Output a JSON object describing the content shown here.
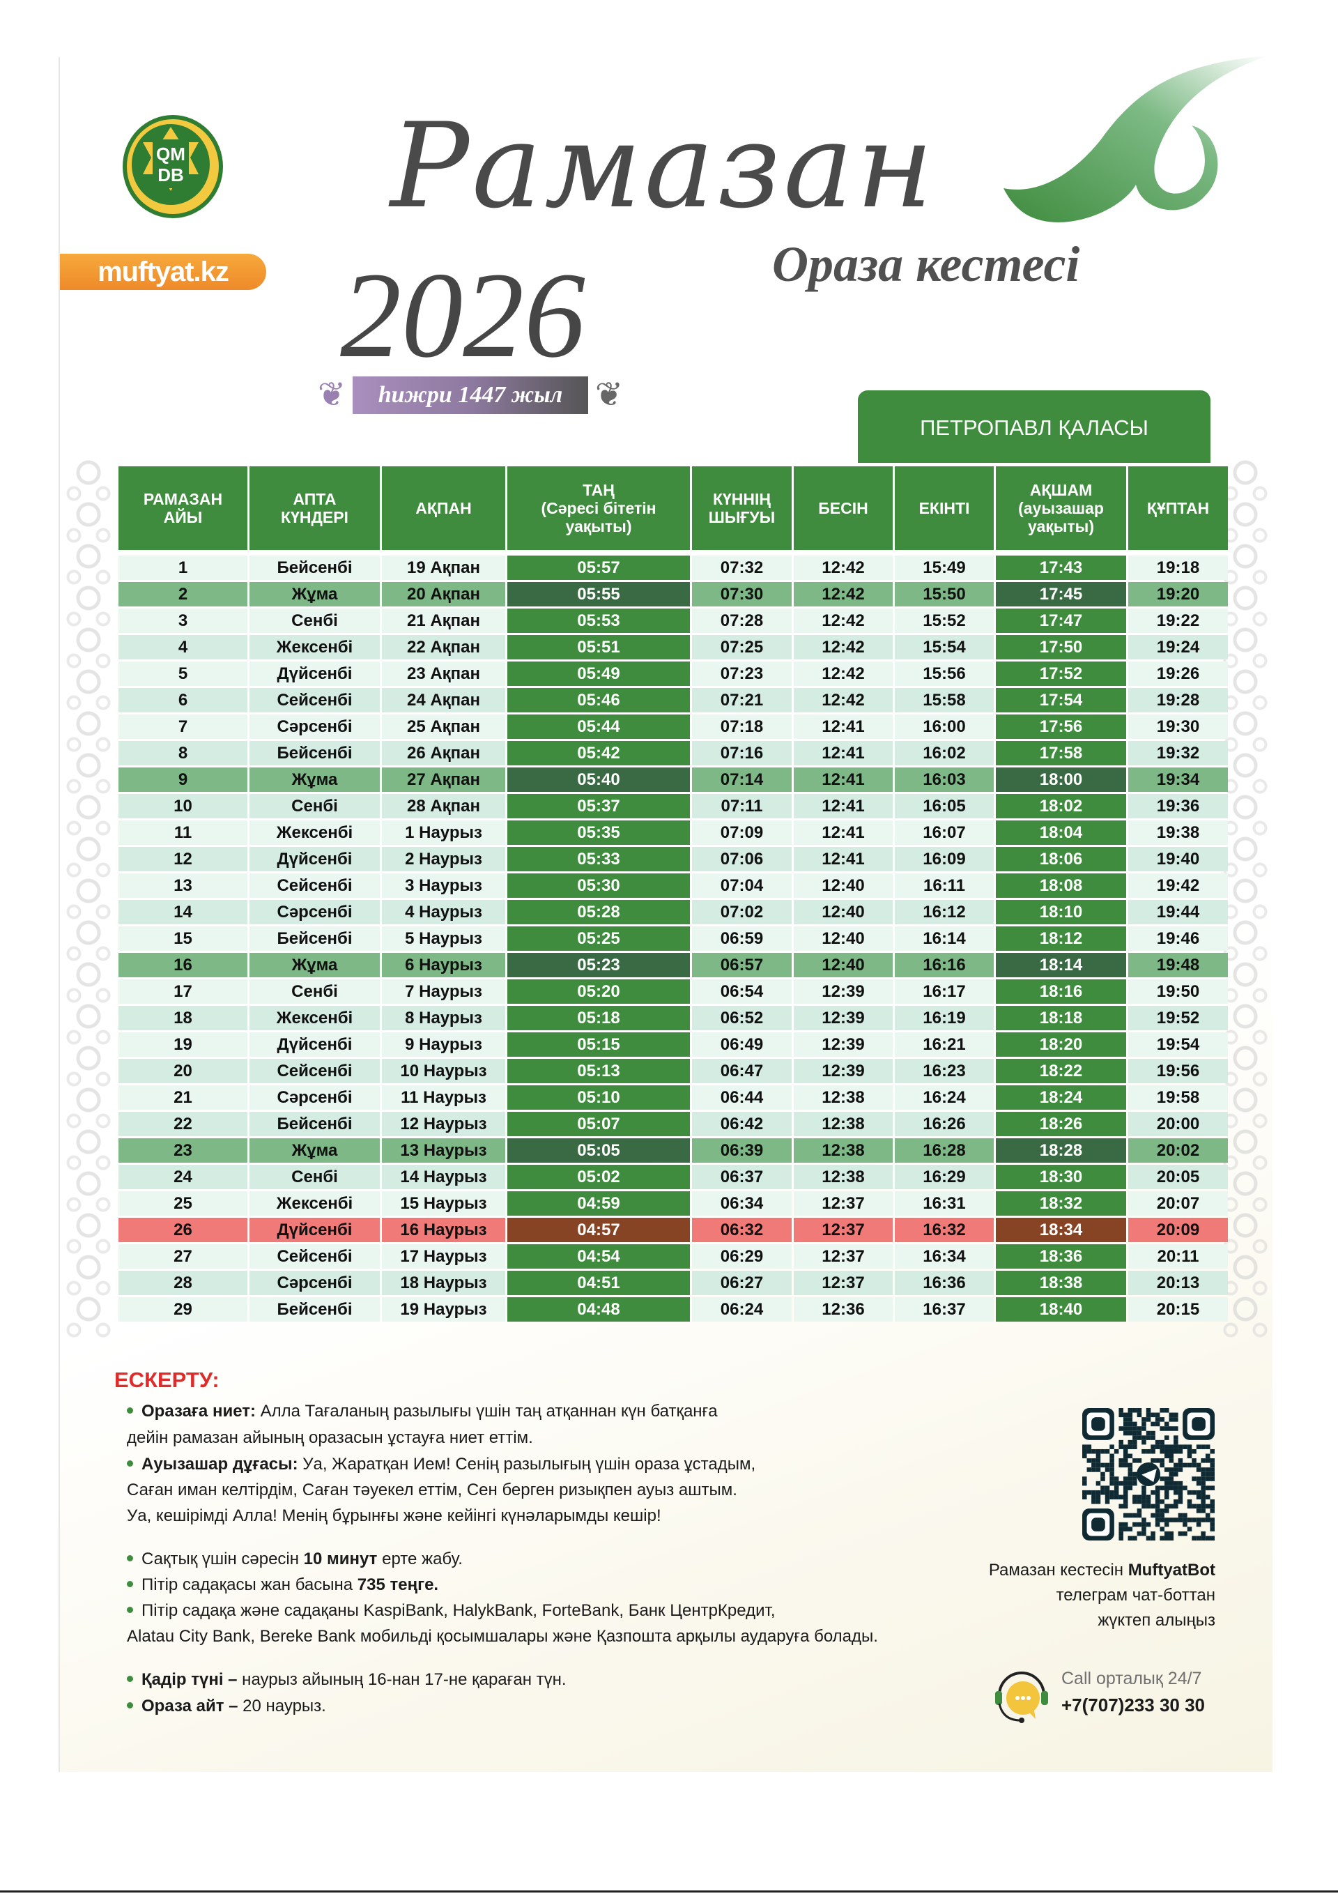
{
  "brand": {
    "logo_text": "QM DB",
    "site": "muftyat.kz",
    "colors": {
      "green": "#3f8c3e",
      "orange": "#f09a33",
      "red": "#e02b2b"
    }
  },
  "header": {
    "title": "Рамазан",
    "year": "2026",
    "subtitle": "Ораза кестесі",
    "hijri": "һижри 1447 жыл",
    "city": "ПЕТРОПАВЛ ҚАЛАСЫ"
  },
  "table": {
    "columns": [
      "РАМАЗАН\nАЙЫ",
      "АПТА\nКҮНДЕРІ",
      "АҚПАН",
      "ТАҢ\n(Сәресі бітетін\nуақыты)",
      "КҮННІҢ\nШЫҒУЫ",
      "БЕСІН",
      "ЕКІНТІ",
      "АҚШАМ\n(ауызашар\nуақыты)",
      "ҚҰПТАН"
    ],
    "rows": [
      {
        "cells": [
          "1",
          "Бейсенбі",
          "19 Ақпан",
          "05:57",
          "07:32",
          "12:42",
          "15:49",
          "17:43",
          "19:18"
        ],
        "kind": "normal"
      },
      {
        "cells": [
          "2",
          "Жұма",
          "20 Ақпан",
          "05:55",
          "07:30",
          "12:42",
          "15:50",
          "17:45",
          "19:20"
        ],
        "kind": "friday"
      },
      {
        "cells": [
          "3",
          "Сенбі",
          "21 Ақпан",
          "05:53",
          "07:28",
          "12:42",
          "15:52",
          "17:47",
          "19:22"
        ],
        "kind": "normal"
      },
      {
        "cells": [
          "4",
          "Жексенбі",
          "22 Ақпан",
          "05:51",
          "07:25",
          "12:42",
          "15:54",
          "17:50",
          "19:24"
        ],
        "kind": "normal"
      },
      {
        "cells": [
          "5",
          "Дүйсенбі",
          "23 Ақпан",
          "05:49",
          "07:23",
          "12:42",
          "15:56",
          "17:52",
          "19:26"
        ],
        "kind": "normal"
      },
      {
        "cells": [
          "6",
          "Сейсенбі",
          "24 Ақпан",
          "05:46",
          "07:21",
          "12:42",
          "15:58",
          "17:54",
          "19:28"
        ],
        "kind": "normal"
      },
      {
        "cells": [
          "7",
          "Сәрсенбі",
          "25 Ақпан",
          "05:44",
          "07:18",
          "12:41",
          "16:00",
          "17:56",
          "19:30"
        ],
        "kind": "normal"
      },
      {
        "cells": [
          "8",
          "Бейсенбі",
          "26 Ақпан",
          "05:42",
          "07:16",
          "12:41",
          "16:02",
          "17:58",
          "19:32"
        ],
        "kind": "normal"
      },
      {
        "cells": [
          "9",
          "Жұма",
          "27 Ақпан",
          "05:40",
          "07:14",
          "12:41",
          "16:03",
          "18:00",
          "19:34"
        ],
        "kind": "friday"
      },
      {
        "cells": [
          "10",
          "Сенбі",
          "28 Ақпан",
          "05:37",
          "07:11",
          "12:41",
          "16:05",
          "18:02",
          "19:36"
        ],
        "kind": "normal"
      },
      {
        "cells": [
          "11",
          "Жексенбі",
          "1 Наурыз",
          "05:35",
          "07:09",
          "12:41",
          "16:07",
          "18:04",
          "19:38"
        ],
        "kind": "normal"
      },
      {
        "cells": [
          "12",
          "Дүйсенбі",
          "2 Наурыз",
          "05:33",
          "07:06",
          "12:41",
          "16:09",
          "18:06",
          "19:40"
        ],
        "kind": "normal"
      },
      {
        "cells": [
          "13",
          "Сейсенбі",
          "3 Наурыз",
          "05:30",
          "07:04",
          "12:40",
          "16:11",
          "18:08",
          "19:42"
        ],
        "kind": "normal"
      },
      {
        "cells": [
          "14",
          "Сәрсенбі",
          "4 Наурыз",
          "05:28",
          "07:02",
          "12:40",
          "16:12",
          "18:10",
          "19:44"
        ],
        "kind": "normal"
      },
      {
        "cells": [
          "15",
          "Бейсенбі",
          "5 Наурыз",
          "05:25",
          "06:59",
          "12:40",
          "16:14",
          "18:12",
          "19:46"
        ],
        "kind": "normal"
      },
      {
        "cells": [
          "16",
          "Жұма",
          "6 Наурыз",
          "05:23",
          "06:57",
          "12:40",
          "16:16",
          "18:14",
          "19:48"
        ],
        "kind": "friday"
      },
      {
        "cells": [
          "17",
          "Сенбі",
          "7 Наурыз",
          "05:20",
          "06:54",
          "12:39",
          "16:17",
          "18:16",
          "19:50"
        ],
        "kind": "normal"
      },
      {
        "cells": [
          "18",
          "Жексенбі",
          "8 Наурыз",
          "05:18",
          "06:52",
          "12:39",
          "16:19",
          "18:18",
          "19:52"
        ],
        "kind": "normal"
      },
      {
        "cells": [
          "19",
          "Дүйсенбі",
          "9 Наурыз",
          "05:15",
          "06:49",
          "12:39",
          "16:21",
          "18:20",
          "19:54"
        ],
        "kind": "normal"
      },
      {
        "cells": [
          "20",
          "Сейсенбі",
          "10 Наурыз",
          "05:13",
          "06:47",
          "12:39",
          "16:23",
          "18:22",
          "19:56"
        ],
        "kind": "normal"
      },
      {
        "cells": [
          "21",
          "Сәрсенбі",
          "11 Наурыз",
          "05:10",
          "06:44",
          "12:38",
          "16:24",
          "18:24",
          "19:58"
        ],
        "kind": "normal"
      },
      {
        "cells": [
          "22",
          "Бейсенбі",
          "12 Наурыз",
          "05:07",
          "06:42",
          "12:38",
          "16:26",
          "18:26",
          "20:00"
        ],
        "kind": "normal"
      },
      {
        "cells": [
          "23",
          "Жұма",
          "13 Наурыз",
          "05:05",
          "06:39",
          "12:38",
          "16:28",
          "18:28",
          "20:02"
        ],
        "kind": "friday"
      },
      {
        "cells": [
          "24",
          "Сенбі",
          "14 Наурыз",
          "05:02",
          "06:37",
          "12:38",
          "16:29",
          "18:30",
          "20:05"
        ],
        "kind": "normal"
      },
      {
        "cells": [
          "25",
          "Жексенбі",
          "15 Наурыз",
          "04:59",
          "06:34",
          "12:37",
          "16:31",
          "18:32",
          "20:07"
        ],
        "kind": "normal"
      },
      {
        "cells": [
          "26",
          "Дүйсенбі",
          "16 Наурыз",
          "04:57",
          "06:32",
          "12:37",
          "16:32",
          "18:34",
          "20:09"
        ],
        "kind": "highlight"
      },
      {
        "cells": [
          "27",
          "Сейсенбі",
          "17 Наурыз",
          "04:54",
          "06:29",
          "12:37",
          "16:34",
          "18:36",
          "20:11"
        ],
        "kind": "normal"
      },
      {
        "cells": [
          "28",
          "Сәрсенбі",
          "18 Наурыз",
          "04:51",
          "06:27",
          "12:37",
          "16:36",
          "18:38",
          "20:13"
        ],
        "kind": "normal"
      },
      {
        "cells": [
          "29",
          "Бейсенбі",
          "19 Наурыз",
          "04:48",
          "06:24",
          "12:36",
          "16:37",
          "18:40",
          "20:15"
        ],
        "kind": "normal"
      }
    ]
  },
  "notes": {
    "title": "ЕСКЕРТУ:",
    "niet_bold": "Оразаға ниет:",
    "niet_text": " Алла Тағаланың разылығы үшін таң атқаннан күн батқанға",
    "niet_cont": "дейін рамазан айының оразасын ұстауға ниет еттім.",
    "dua_bold": "Ауызашар дұғасы:",
    "dua_text": " Уа, Жаратқан Ием! Сенің разылығың үшін ораза ұстадым,",
    "dua_cont1": "Саған иман келтірдім, Саған тәуекел еттім, Сен берген ризықпен ауыз аштым.",
    "dua_cont2": "Уа, кешірімді Алла! Менің бұрынғы және кейінгі күнәларымды кешір!",
    "sahur_pre": "Сақтық үшін сәресін ",
    "sahur_bold": "10 минут",
    "sahur_post": " ерте жабу.",
    "fitr_pre": "Пітір садақасы жан басына ",
    "fitr_bold": "735 теңге.",
    "banks": "Пітір садақа және садақаны KaspiBank, HalykBank, ForteBank, Банк ЦентрКредит,",
    "banks_cont": "Alatau City Bank, Bereke Bank мобильді қосымшалары және Қазпошта арқылы аударуға болады.",
    "qadr_bold": "Қадір түні –",
    "qadr_text": " наурыз айының 16-нан 17-не қараған түн.",
    "ait_bold": "Ораза айт –",
    "ait_text": " 20 наурыз."
  },
  "bot": {
    "line1_pre": "Рамазан кестесін ",
    "line1_bold": "MuftyatBot",
    "line2": "телеграм чат-боттан",
    "line3": "жүктеп алыңыз",
    "qr_icon": "telegram-qr-code"
  },
  "call": {
    "label": "Call орталық 24/7",
    "phone": "+7(707)233 30 30",
    "icon": "headset-chat-icon"
  }
}
